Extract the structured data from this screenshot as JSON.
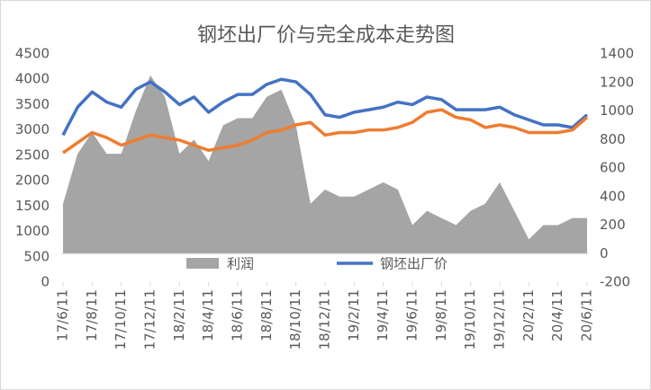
{
  "chart_data": {
    "type": "line",
    "title": "钢坯出厂价与完全成本走势图",
    "x": [
      "17/6/11",
      "17/7/11",
      "17/8/11",
      "17/9/11",
      "17/10/11",
      "17/11/11",
      "17/12/11",
      "18/1/11",
      "18/2/11",
      "18/3/11",
      "18/4/11",
      "18/5/11",
      "18/6/11",
      "18/7/11",
      "18/8/11",
      "18/9/11",
      "18/10/11",
      "18/11/11",
      "18/12/11",
      "19/1/11",
      "19/2/11",
      "19/3/11",
      "19/4/11",
      "19/5/11",
      "19/6/11",
      "19/7/11",
      "19/8/11",
      "19/9/11",
      "19/10/11",
      "19/11/11",
      "19/12/11",
      "20/1/11",
      "20/2/11",
      "20/3/11",
      "20/4/11",
      "20/5/11",
      "20/6/11"
    ],
    "xticks": [
      "17/6/11",
      "17/8/11",
      "17/10/11",
      "17/12/11",
      "18/2/11",
      "18/4/11",
      "18/6/11",
      "18/8/11",
      "18/10/11",
      "18/12/11",
      "19/2/11",
      "19/4/11",
      "19/6/11",
      "19/8/11",
      "19/10/11",
      "19/12/11",
      "20/2/11",
      "20/4/11",
      "20/6/11"
    ],
    "series": [
      {
        "name": "利润",
        "kind": "area",
        "axis": "y2",
        "color": "#a5a5a5",
        "values": [
          350,
          700,
          850,
          700,
          700,
          1000,
          1250,
          1100,
          700,
          800,
          650,
          900,
          950,
          950,
          1100,
          1150,
          900,
          350,
          450,
          400,
          400,
          450,
          500,
          450,
          200,
          300,
          250,
          200,
          300,
          350,
          500,
          300,
          100,
          200,
          200,
          250,
          250
        ]
      },
      {
        "name": "钢坯出厂价",
        "kind": "line",
        "axis": "y",
        "color": "#4472c4",
        "values": [
          2900,
          3450,
          3750,
          3550,
          3450,
          3800,
          3950,
          3750,
          3500,
          3650,
          3350,
          3550,
          3700,
          3700,
          3900,
          4000,
          3950,
          3700,
          3300,
          3250,
          3350,
          3400,
          3450,
          3550,
          3500,
          3650,
          3600,
          3400,
          3400,
          3400,
          3450,
          3300,
          3200,
          3100,
          3100,
          3050,
          3300
        ]
      },
      {
        "kind": "line",
        "axis": "y",
        "color": "#ed7d31",
        "values": [
          2550,
          2750,
          2950,
          2850,
          2700,
          2800,
          2900,
          2850,
          2800,
          2700,
          2600,
          2650,
          2700,
          2800,
          2950,
          3000,
          3100,
          3150,
          2900,
          2950,
          2950,
          3000,
          3000,
          3050,
          3150,
          3350,
          3400,
          3250,
          3200,
          3050,
          3100,
          3050,
          2950,
          2950,
          2950,
          3000,
          3250
        ]
      }
    ],
    "ylim": [
      0,
      4500
    ],
    "yticks": [
      0,
      500,
      1000,
      1500,
      2000,
      2500,
      3000,
      3500,
      4000,
      4500
    ],
    "y2lim": [
      -200,
      1400
    ],
    "y2ticks": [
      -200,
      0,
      200,
      400,
      600,
      800,
      1000,
      1200,
      1400
    ],
    "legend": "bottom"
  }
}
